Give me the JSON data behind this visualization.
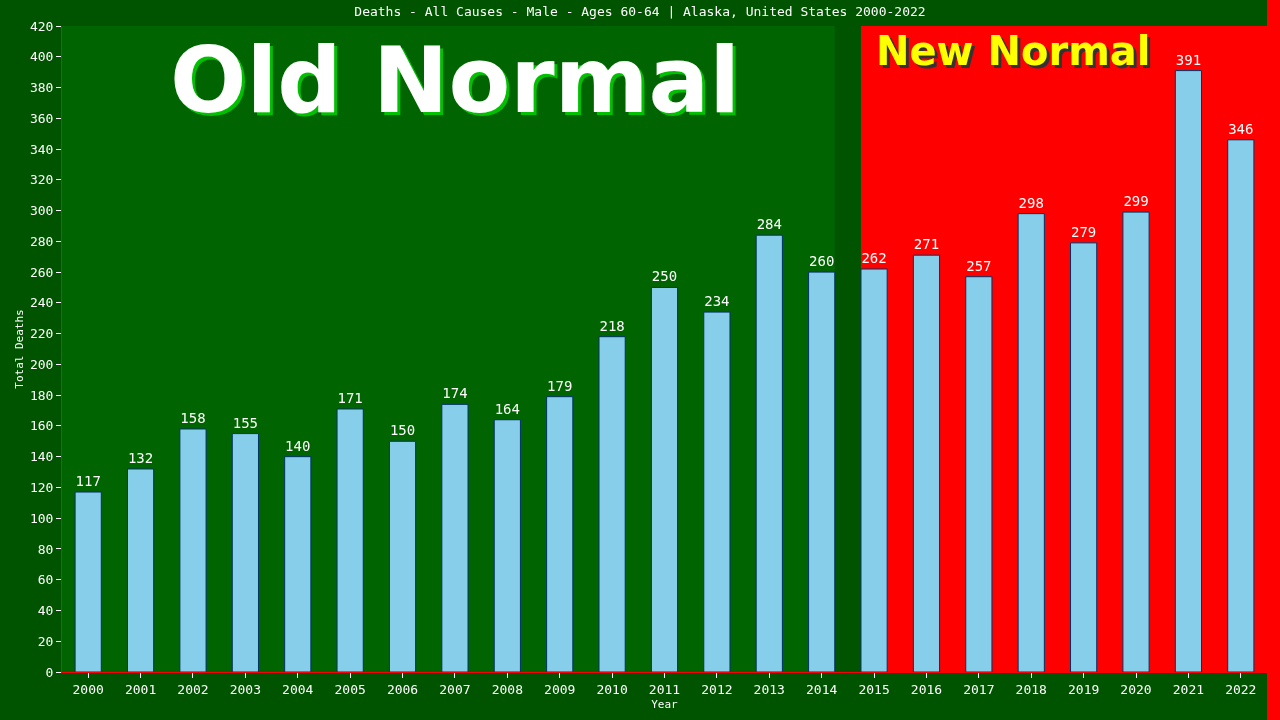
{
  "chart_data": {
    "type": "bar",
    "title": "Deaths - All Causes - Male - Ages 60-64 | Alaska, United States 2000-2022",
    "xlabel": "Year",
    "ylabel": "Total Deaths",
    "categories": [
      "2000",
      "2001",
      "2002",
      "2003",
      "2004",
      "2005",
      "2006",
      "2007",
      "2008",
      "2009",
      "2010",
      "2011",
      "2012",
      "2013",
      "2014",
      "2015",
      "2016",
      "2017",
      "2018",
      "2019",
      "2020",
      "2021",
      "2022"
    ],
    "values": [
      117,
      132,
      158,
      155,
      140,
      171,
      150,
      174,
      164,
      179,
      218,
      250,
      234,
      284,
      260,
      262,
      271,
      257,
      298,
      279,
      299,
      391,
      346
    ],
    "color": "#87ceeb",
    "data_labels": true,
    "ylim": [
      0,
      420
    ],
    "yticks": [
      0,
      20,
      40,
      60,
      80,
      100,
      120,
      140,
      160,
      180,
      200,
      220,
      240,
      260,
      280,
      300,
      320,
      340,
      360,
      380,
      400,
      420
    ],
    "grid": false,
    "legend": false,
    "bands": [
      {
        "axis": "x",
        "from": "2000",
        "to": "2014",
        "label": "Old Normal",
        "color": "#006400"
      },
      {
        "axis": "x",
        "from": "2015",
        "to": "2022",
        "label": "New Normal",
        "color": "#ff0000"
      }
    ]
  }
}
